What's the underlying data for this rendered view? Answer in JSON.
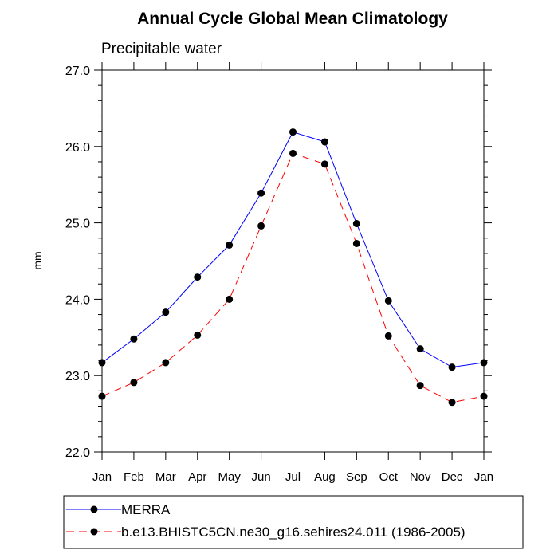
{
  "chart_data": {
    "type": "line",
    "title": "Annual Cycle Global Mean Climatology",
    "subtitle": "Precipitable water",
    "xlabel": "",
    "ylabel": "mm",
    "ylim": [
      22.0,
      27.0
    ],
    "yticks": [
      "22.0",
      "23.0",
      "24.0",
      "25.0",
      "26.0",
      "27.0"
    ],
    "categories": [
      "Jan",
      "Feb",
      "Mar",
      "Apr",
      "May",
      "Jun",
      "Jul",
      "Aug",
      "Sep",
      "Oct",
      "Nov",
      "Dec",
      "Jan"
    ],
    "grid": false,
    "legend_position": "bottom",
    "series": [
      {
        "name": "MERRA",
        "color": "#0000ff",
        "dash": "solid",
        "marker": "filled-circle",
        "values": [
          23.17,
          23.48,
          23.83,
          24.29,
          24.71,
          25.39,
          26.19,
          26.06,
          24.99,
          23.98,
          23.35,
          23.11,
          23.17
        ]
      },
      {
        "name": "b.e13.BHISTC5CN.ne30_g16.sehires24.011 (1986-2005)",
        "color": "#ff0000",
        "dash": "dashed",
        "marker": "filled-circle",
        "values": [
          22.73,
          22.91,
          23.17,
          23.53,
          24.0,
          24.96,
          25.91,
          25.77,
          24.73,
          23.52,
          22.87,
          22.65,
          22.73
        ]
      }
    ]
  }
}
